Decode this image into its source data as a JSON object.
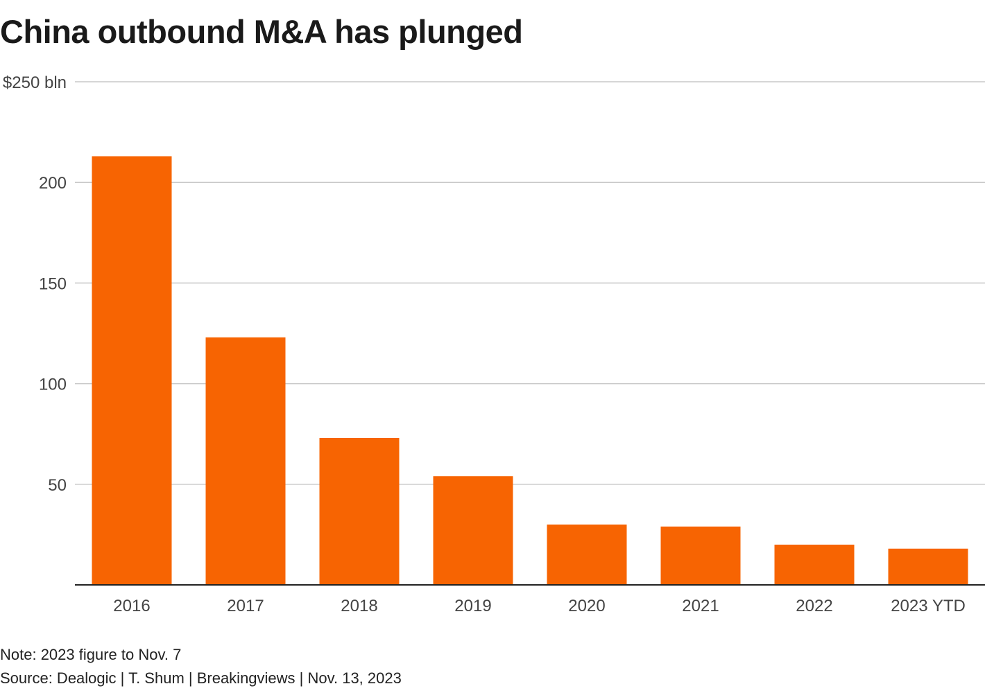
{
  "title": "China outbound M&A has plunged",
  "note": "Note: 2023 figure to Nov. 7",
  "source": "Source: Dealogic | T. Shum | Breakingviews | Nov. 13, 2023",
  "colors": {
    "bar": "#f76402",
    "grid": "#c8c8c8",
    "axis": "#222222",
    "tick_text": "#444444"
  },
  "chart_data": {
    "type": "bar",
    "title": "China outbound M&A has plunged",
    "xlabel": "",
    "ylabel": "$250 bln",
    "categories": [
      "2016",
      "2017",
      "2018",
      "2019",
      "2020",
      "2021",
      "2022",
      "2023 YTD"
    ],
    "values": [
      213,
      123,
      73,
      54,
      30,
      29,
      20,
      18
    ],
    "ylim": [
      0,
      250
    ],
    "yticks": [
      50,
      100,
      150,
      200,
      250
    ],
    "ytick_labels": [
      "50",
      "100",
      "150",
      "200",
      "$250 bln"
    ],
    "grid": true,
    "legend": "none"
  }
}
